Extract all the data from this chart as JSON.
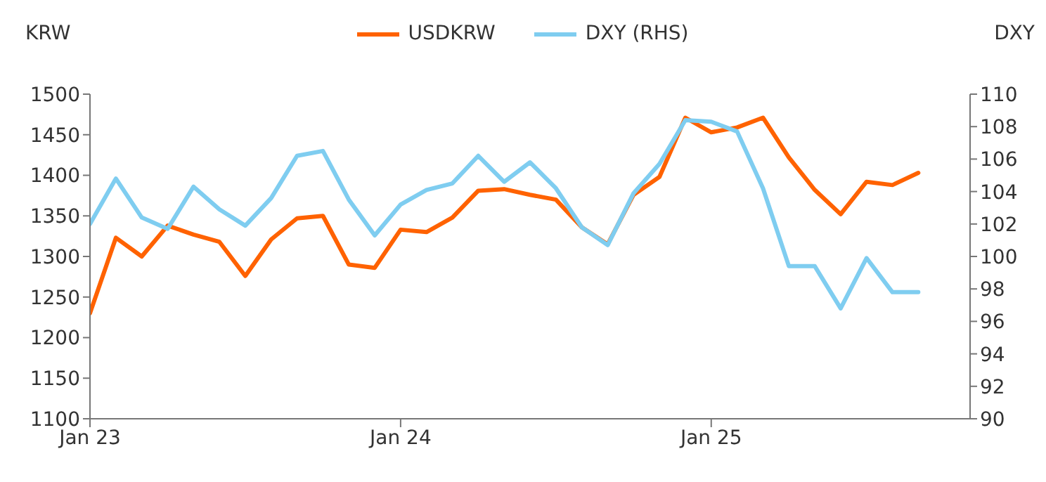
{
  "chart_data": {
    "type": "line",
    "ylabel": "KRW",
    "y2label": "DXY",
    "categories": [
      "Jan 23",
      null,
      null,
      null,
      null,
      null,
      null,
      null,
      null,
      null,
      null,
      null,
      "Jan 24",
      null,
      null,
      null,
      null,
      null,
      null,
      null,
      null,
      null,
      null,
      null,
      "Jan 25",
      null,
      null,
      null,
      null,
      null,
      null,
      null,
      null
    ],
    "series": [
      {
        "name": "USDKRW",
        "color": "#ff6200",
        "values": [
          1230,
          1323,
          1300,
          1338,
          1327,
          1318,
          1276,
          1321,
          1347,
          1350,
          1290,
          1286,
          1333,
          1330,
          1348,
          1381,
          1383,
          1376,
          1370,
          1336,
          1315,
          1376,
          1398,
          1471,
          1453,
          1459,
          1471,
          1422,
          1382,
          1352,
          1392,
          1388,
          1403
        ]
      },
      {
        "name": "DXY (RHS)",
        "color": "#7fcdf0",
        "axis": "y2",
        "values": [
          102.0,
          104.8,
          102.4,
          101.7,
          104.3,
          102.9,
          101.9,
          103.6,
          106.2,
          106.5,
          103.5,
          101.3,
          103.2,
          104.1,
          104.5,
          106.2,
          104.6,
          105.8,
          104.2,
          101.8,
          100.7,
          103.9,
          105.7,
          108.4,
          108.3,
          107.7,
          104.2,
          99.4,
          99.4,
          96.8,
          99.9,
          97.8,
          97.8
        ]
      }
    ],
    "ylim": [
      1100,
      1500
    ],
    "yticks": [
      1100,
      1150,
      1200,
      1250,
      1300,
      1350,
      1400,
      1450,
      1500
    ],
    "y2lim": [
      90,
      110
    ],
    "y2ticks": [
      90,
      92,
      94,
      96,
      98,
      100,
      102,
      104,
      106,
      108,
      110
    ],
    "grid": false,
    "legend": "top",
    "marker": "none",
    "line_style": "solid"
  }
}
